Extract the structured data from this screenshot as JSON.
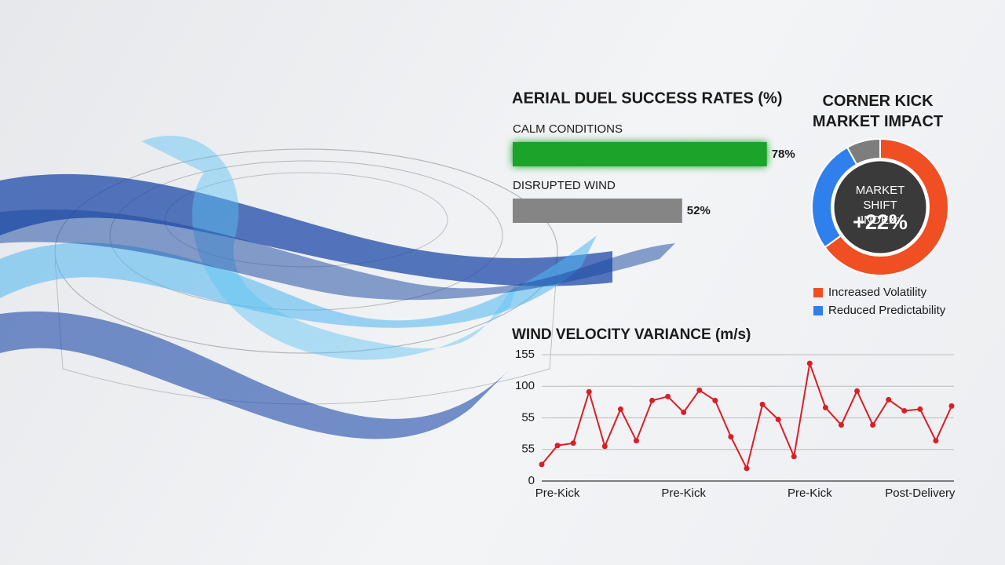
{
  "chart_data": [
    {
      "type": "bar",
      "orientation": "horizontal",
      "title": "AERIAL DUEL SUCCESS RATES (%)",
      "categories": [
        "CALM CONDITIONS",
        "DISRUPTED WIND"
      ],
      "values": [
        78,
        52
      ],
      "value_labels": [
        "78%",
        "52%"
      ],
      "colors": [
        "#1fa32a",
        "#858585"
      ],
      "xlim": [
        0,
        100
      ]
    },
    {
      "type": "pie",
      "donut": true,
      "title": "CORNER KICK MARKET IMPACT",
      "center_label": "MARKET SHIFT INDEX:",
      "center_value": "+22%",
      "categories": [
        "Increased Volatility",
        "Reduced Predictability",
        null
      ],
      "values": [
        65,
        27,
        8
      ],
      "colors": [
        "#f04e23",
        "#2f80ed",
        "#7d7d7d"
      ]
    },
    {
      "type": "line",
      "title": "WIND VELOCITY VARIANCE (m/s)",
      "color": "#d81f26",
      "categories": [
        null,
        "Pre-Kick",
        null,
        null,
        null,
        null,
        null,
        null,
        null,
        "Pre-Kick",
        null,
        null,
        null,
        null,
        null,
        null,
        null,
        "Pre-Kick",
        null,
        null,
        null,
        null,
        null,
        null,
        "Post-Delivery",
        null,
        null
      ],
      "values": [
        21,
        45,
        48,
        113,
        44,
        91,
        51,
        102,
        107,
        87,
        115,
        102,
        56,
        16,
        97,
        78,
        31,
        149,
        93,
        71,
        114,
        71,
        103,
        89,
        91,
        51,
        95
      ],
      "ylim": [
        0,
        160
      ],
      "yticks": [
        0,
        {
          "value": 40,
          "label": "55"
        },
        {
          "value": 80,
          "label": "55"
        },
        {
          "value": 120,
          "label": "100"
        },
        {
          "value": 160,
          "label": "155"
        }
      ],
      "grid": true
    }
  ]
}
